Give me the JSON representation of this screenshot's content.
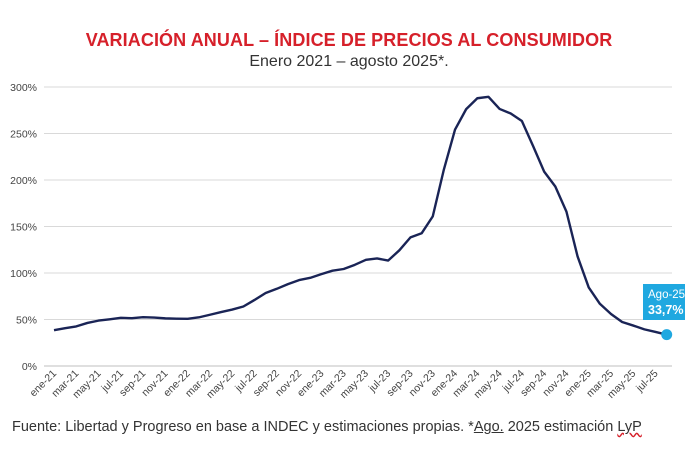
{
  "title": "VARIACIÓN ANUAL – ÍNDICE DE PRECIOS AL CONSUMIDOR",
  "subtitle": "Enero 2021 – agosto 2025*.",
  "source": {
    "prefix": "Fuente: Libertad y Progreso en base a INDEC y estimaciones propias. *",
    "ago": "Ago.",
    "middle": " 2025 estimación ",
    "lyp": "LyP"
  },
  "colors": {
    "title": "#d6202a",
    "line": "#1a2456",
    "highlight": "#1fa8e0",
    "grid": "#d9d9d9"
  },
  "chart_data": {
    "type": "line",
    "title": "VARIACIÓN ANUAL – ÍNDICE DE PRECIOS AL CONSUMIDOR",
    "subtitle": "Enero 2021 – agosto 2025*.",
    "xlabel": "",
    "ylabel": "",
    "ylim": [
      0,
      300
    ],
    "y_ticks": [
      0,
      50,
      100,
      150,
      200,
      250,
      300
    ],
    "y_tick_labels": [
      "0%",
      "50%",
      "100%",
      "150%",
      "200%",
      "250%",
      "300%"
    ],
    "x_tick_labels": [
      "ene-21",
      "mar-21",
      "may-21",
      "jul-21",
      "sep-21",
      "nov-21",
      "ene-22",
      "mar-22",
      "may-22",
      "jul-22",
      "sep-22",
      "nov-22",
      "ene-23",
      "mar-23",
      "may-23",
      "jul-23",
      "sep-23",
      "nov-23",
      "ene-24",
      "mar-24",
      "may-24",
      "jul-24",
      "sep-24",
      "nov-24",
      "ene-25",
      "mar-25",
      "may-25",
      "jul-25"
    ],
    "grid": "horizontal",
    "categories": [
      "ene-21",
      "feb-21",
      "mar-21",
      "abr-21",
      "may-21",
      "jun-21",
      "jul-21",
      "ago-21",
      "sep-21",
      "oct-21",
      "nov-21",
      "dic-21",
      "ene-22",
      "feb-22",
      "mar-22",
      "abr-22",
      "may-22",
      "jun-22",
      "jul-22",
      "ago-22",
      "sep-22",
      "oct-22",
      "nov-22",
      "dic-22",
      "ene-23",
      "feb-23",
      "mar-23",
      "abr-23",
      "may-23",
      "jun-23",
      "jul-23",
      "ago-23",
      "sep-23",
      "oct-23",
      "nov-23",
      "dic-23",
      "ene-24",
      "feb-24",
      "mar-24",
      "abr-24",
      "may-24",
      "jun-24",
      "jul-24",
      "ago-24",
      "sep-24",
      "oct-24",
      "nov-24",
      "dic-24",
      "ene-25",
      "feb-25",
      "mar-25",
      "abr-25",
      "may-25",
      "jun-25",
      "jul-25",
      "ago-25"
    ],
    "series": [
      {
        "values": [
          38.5,
          40.7,
          42.6,
          46.3,
          48.8,
          50.2,
          51.8,
          51.4,
          52.5,
          52.1,
          51.2,
          50.9,
          50.7,
          52.3,
          55.1,
          58.0,
          60.7,
          64.0,
          71.0,
          78.5,
          83.0,
          88.0,
          92.4,
          94.8,
          98.8,
          102.5,
          104.3,
          108.8,
          114.2,
          115.6,
          113.4,
          124.4,
          138.3,
          142.7,
          160.9,
          211.4,
          254.2,
          276.2,
          287.9,
          289.4,
          276.4,
          271.5,
          263.4,
          236.7,
          209.0,
          193.0,
          166.0,
          117.8,
          84.5,
          66.9,
          55.9,
          47.3,
          43.5,
          39.4,
          36.6,
          33.7
        ]
      }
    ],
    "highlight": {
      "category": "ago-25",
      "value": 33.7,
      "label_line1": "Ago-25",
      "label_line2": "33,7%"
    }
  }
}
